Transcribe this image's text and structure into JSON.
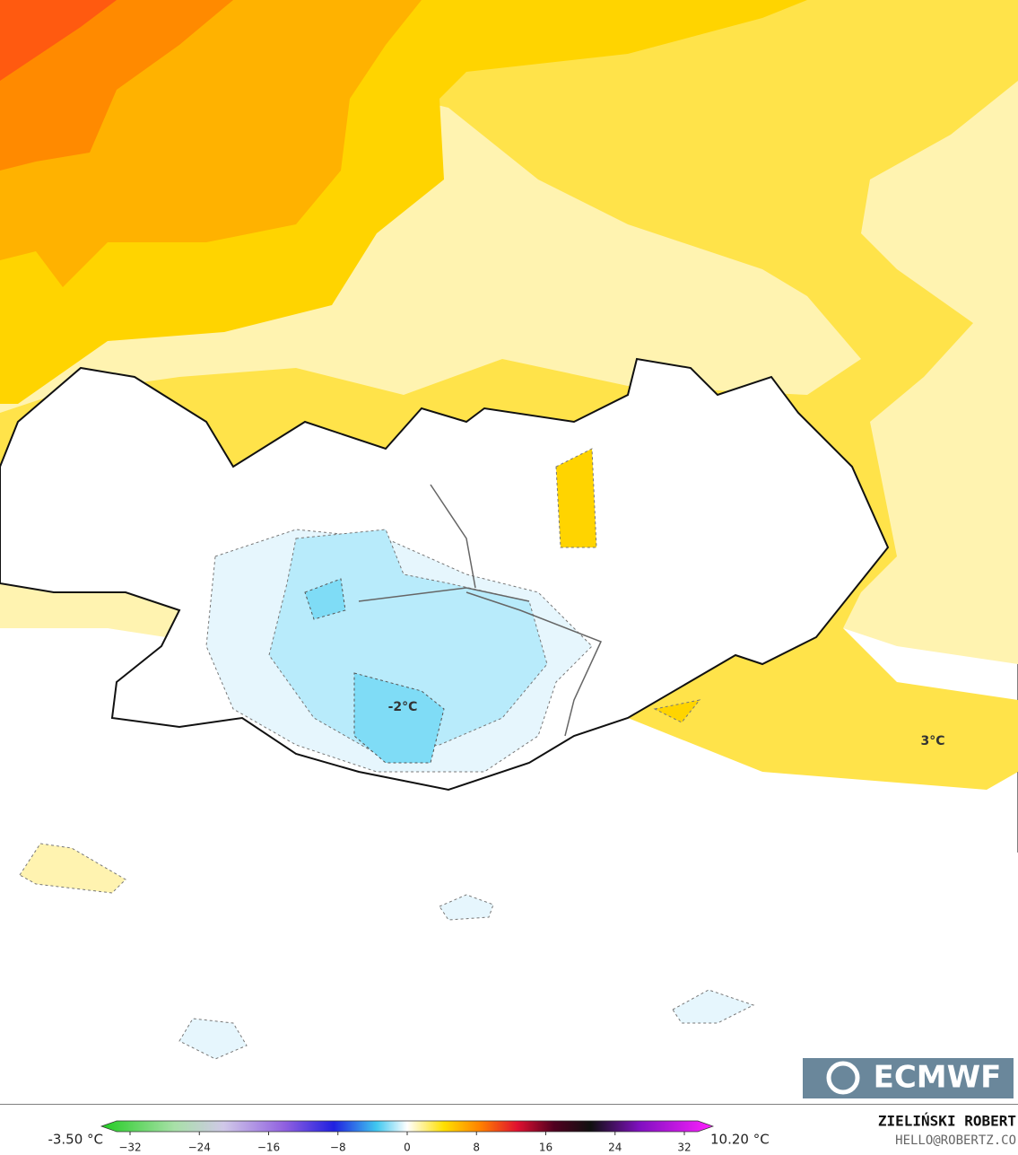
{
  "map": {
    "labels": [
      "-2°C",
      "3°C"
    ]
  },
  "colorbar": {
    "min_label": "-3.50 °C",
    "max_label": "10.20 °C",
    "ticks": [
      {
        "value": -32,
        "label": "−32"
      },
      {
        "value": -24,
        "label": "−24"
      },
      {
        "value": -16,
        "label": "−16"
      },
      {
        "value": -8,
        "label": "−8"
      },
      0,
      8,
      16,
      24,
      32
    ]
  },
  "credits": {
    "author": "ZIELIŃSKI ROBERT",
    "email": "HELLO@ROBERTZ.CO",
    "logo": "ECMWF"
  }
}
